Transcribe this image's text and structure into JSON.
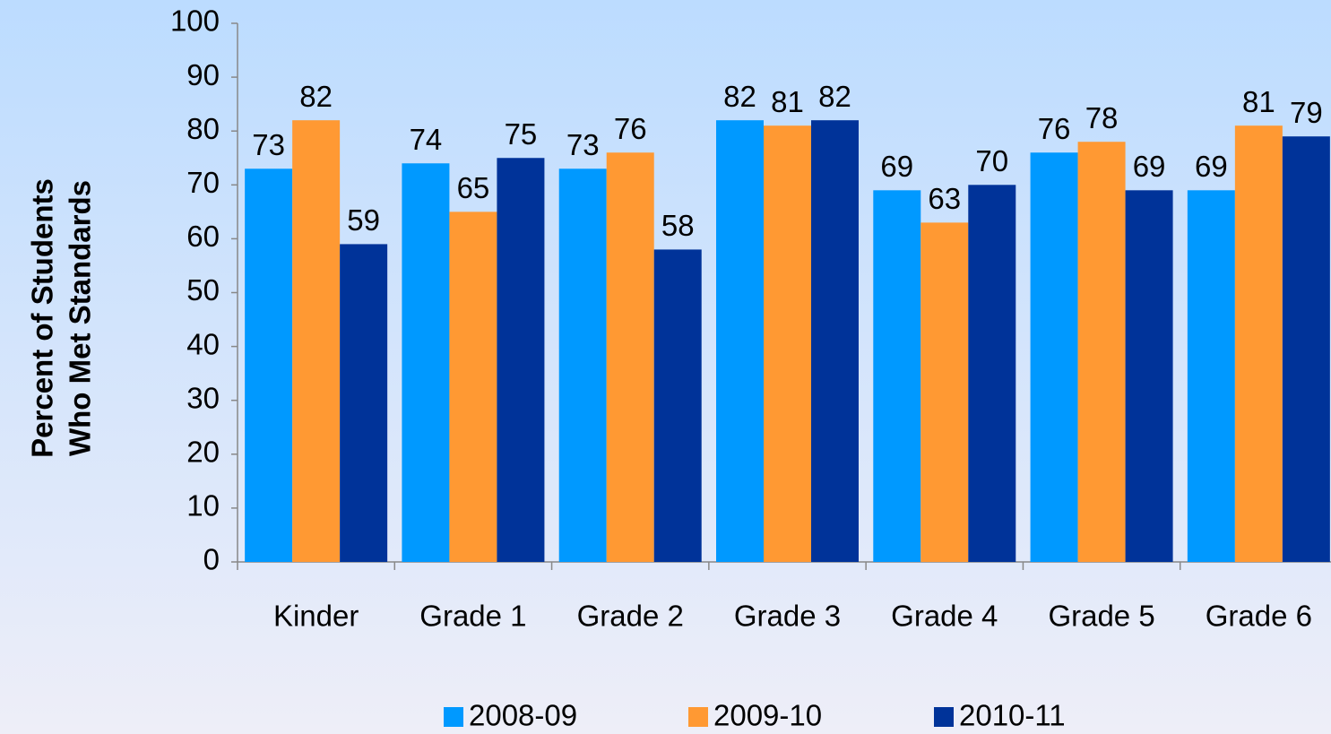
{
  "chart_data": {
    "type": "bar",
    "ylabel": [
      "Percent of Students",
      "Who Met Standards"
    ],
    "categories": [
      "Kinder",
      "Grade 1",
      "Grade 2",
      "Grade 3",
      "Grade 4",
      "Grade 5",
      "Grade 6"
    ],
    "series": [
      {
        "name": "2008-09",
        "color": "#0099ff",
        "values": [
          73,
          74,
          73,
          82,
          69,
          76,
          69
        ]
      },
      {
        "name": "2009-10",
        "color": "#ff9933",
        "values": [
          82,
          65,
          76,
          81,
          63,
          78,
          81
        ]
      },
      {
        "name": "2010-11",
        "color": "#003399",
        "values": [
          59,
          75,
          58,
          82,
          70,
          69,
          79
        ]
      }
    ],
    "ylim": [
      0,
      100
    ],
    "yticks": [
      0,
      10,
      20,
      30,
      40,
      50,
      60,
      70,
      80,
      90,
      100
    ],
    "grid": false,
    "legend": "bottom"
  }
}
